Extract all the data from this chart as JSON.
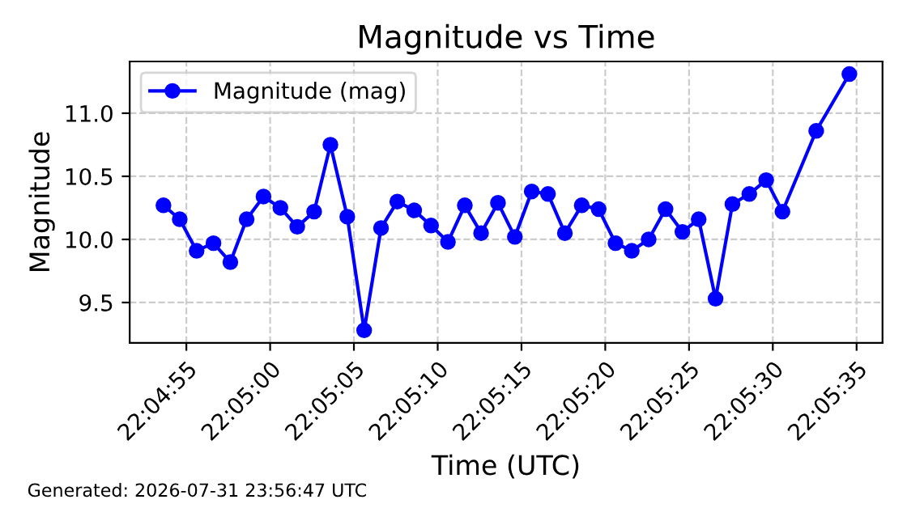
{
  "chart_data": {
    "type": "line",
    "title": "Magnitude vs Time",
    "xlabel": "Time (UTC)",
    "ylabel": "Magnitude",
    "x": [
      22.08156,
      22.08183,
      22.08211,
      22.08239,
      22.08267,
      22.08294,
      22.08322,
      22.0835,
      22.08378,
      22.08406,
      22.08433,
      22.08461,
      22.08489,
      22.08517,
      22.08544,
      22.08572,
      22.086,
      22.08628,
      22.08656,
      22.08683,
      22.08711,
      22.08739,
      22.08767,
      22.08794,
      22.08822,
      22.0885,
      22.08878,
      22.08906,
      22.08933,
      22.08961,
      22.08989,
      22.09017,
      22.09044,
      22.09072,
      22.091,
      22.09128,
      22.09156,
      22.09183,
      22.09239,
      22.09294
    ],
    "series": [
      {
        "name": "Magnitude (mag)",
        "color": "#0000ff",
        "values": [
          10.27,
          10.16,
          9.91,
          9.97,
          9.82,
          10.16,
          10.34,
          10.25,
          10.1,
          10.22,
          10.75,
          10.18,
          9.28,
          10.09,
          10.3,
          10.23,
          10.11,
          9.98,
          10.27,
          10.05,
          10.29,
          10.02,
          10.38,
          10.36,
          10.05,
          10.27,
          10.24,
          9.97,
          9.91,
          10.0,
          10.24,
          10.06,
          10.16,
          9.53,
          10.28,
          10.36,
          10.47,
          10.22,
          10.86,
          11.31
        ]
      }
    ],
    "xlim": [
      22.081,
      22.09349
    ],
    "xticks": [
      {
        "value": 22.08194,
        "label": "22:04:55"
      },
      {
        "value": 22.08333,
        "label": "22:05:00"
      },
      {
        "value": 22.08472,
        "label": "22:05:05"
      },
      {
        "value": 22.08611,
        "label": "22:05:10"
      },
      {
        "value": 22.0875,
        "label": "22:05:15"
      },
      {
        "value": 22.08889,
        "label": "22:05:20"
      },
      {
        "value": 22.09028,
        "label": "22:05:25"
      },
      {
        "value": 22.09167,
        "label": "22:05:30"
      },
      {
        "value": 22.09306,
        "label": "22:05:35"
      }
    ],
    "ylim": [
      9.18,
      11.41
    ],
    "yticks": [
      9.5,
      {
        "value": 10,
        "label": "10.0"
      },
      10.5,
      {
        "value": 11,
        "label": "11.0"
      }
    ],
    "grid": true,
    "legend": "top left",
    "marker": "circle",
    "line_style": "solid",
    "annotations": [
      "Generated: 2026-07-31 23:56:47 UTC"
    ]
  }
}
